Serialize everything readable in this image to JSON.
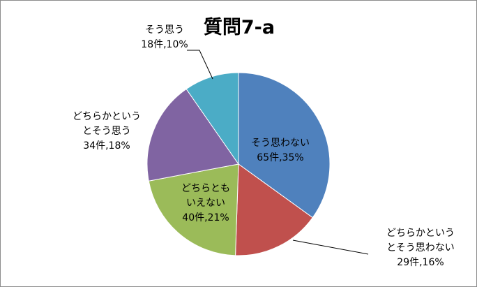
{
  "chart_data": {
    "type": "pie",
    "title": "質問7-a",
    "slices": [
      {
        "label_lines": [
          "そう思わない"
        ],
        "value_label": "65件,35%",
        "count": 65,
        "percent": 35,
        "color": "#4f81bd"
      },
      {
        "label_lines": [
          "どちらかという",
          "とそう思わない"
        ],
        "value_label": "29件,16%",
        "count": 29,
        "percent": 16,
        "color": "#c0504d"
      },
      {
        "label_lines": [
          "どちらとも",
          "いえない"
        ],
        "value_label": "40件,21%",
        "count": 40,
        "percent": 21,
        "color": "#9bbb59"
      },
      {
        "label_lines": [
          "どちらかという",
          "とそう思う"
        ],
        "value_label": "34件,18%",
        "count": 34,
        "percent": 18,
        "color": "#8064a2"
      },
      {
        "label_lines": [
          "そう思う"
        ],
        "value_label": "18件,10%",
        "count": 18,
        "percent": 10,
        "color": "#4bacc6"
      }
    ]
  }
}
